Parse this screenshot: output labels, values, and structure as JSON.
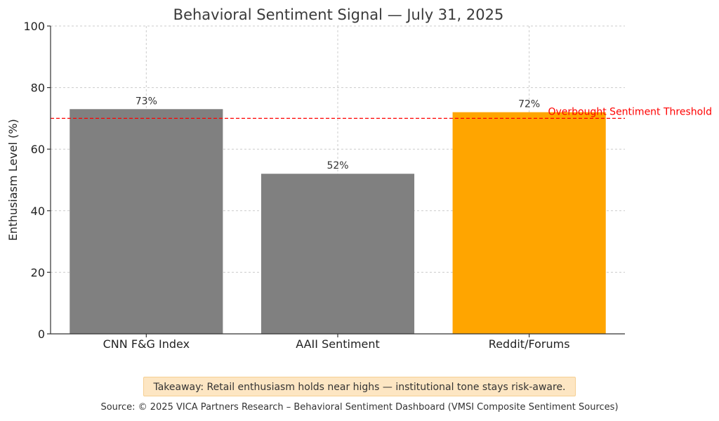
{
  "chart_data": {
    "type": "bar",
    "title": "Behavioral Sentiment Signal — July 31, 2025",
    "xlabel": "",
    "ylabel": "Enthusiasm Level (%)",
    "categories": [
      "CNN F&G Index",
      "AAII Sentiment",
      "Reddit/Forums"
    ],
    "values": [
      73,
      52,
      72
    ],
    "data_labels": [
      "73%",
      "52%",
      "72%"
    ],
    "bar_colors": [
      "#808080",
      "#808080",
      "#ffa500"
    ],
    "ylim": [
      0,
      100
    ],
    "yticks": [
      0,
      20,
      40,
      60,
      80,
      100
    ],
    "grid": true,
    "threshold": {
      "value": 70,
      "label": "Overbought Sentiment Threshold",
      "color": "#ff0000",
      "style": "dashed"
    }
  },
  "takeaway": "Takeaway: Retail enthusiasm holds near highs — institutional tone stays risk-aware.",
  "source": "Source: © 2025 VICA Partners Research – Behavioral Sentiment Dashboard (VMSI Composite Sentiment Sources)"
}
